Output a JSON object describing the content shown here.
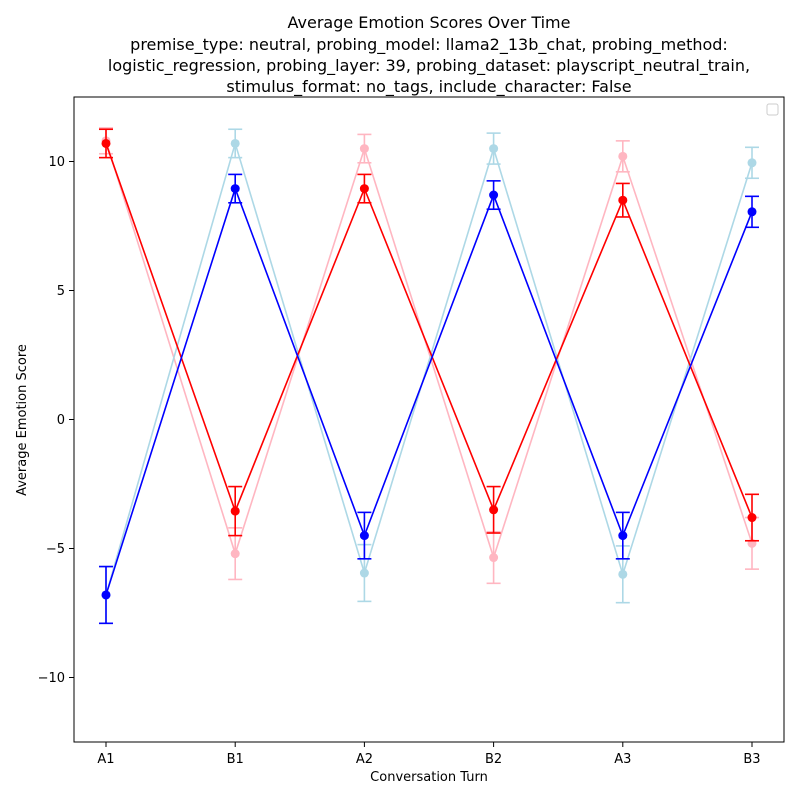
{
  "chart_data": {
    "type": "line",
    "title_lines": [
      "Average Emotion Scores Over Time",
      "premise_type: neutral, probing_model: llama2_13b_chat, probing_method:",
      "logistic_regression, probing_layer: 39, probing_dataset: playscript_neutral_train,",
      "stimulus_format: no_tags, include_character: False"
    ],
    "xlabel": "Conversation Turn",
    "ylabel": "Average Emotion Score",
    "categories": [
      "A1",
      "B1",
      "A2",
      "B2",
      "A3",
      "B3"
    ],
    "ylim": [
      -12.5,
      12.5
    ],
    "yticks": [
      -10,
      -5,
      0,
      5,
      10
    ],
    "ytick_labels": [
      "−10",
      "−5",
      "0",
      "5",
      "10"
    ],
    "legend": "top-right (empty)",
    "grid": false,
    "series": [
      {
        "color": "#ffb6c1",
        "values": [
          10.8,
          -5.2,
          10.5,
          -5.35,
          10.2,
          -4.8
        ],
        "errors": [
          0.5,
          1.0,
          0.55,
          1.0,
          0.6,
          1.0
        ]
      },
      {
        "color": "#add8e6",
        "values": [
          -6.8,
          10.7,
          -5.95,
          10.5,
          -6.0,
          9.95
        ],
        "errors": [
          1.1,
          0.55,
          1.1,
          0.6,
          1.1,
          0.6
        ]
      },
      {
        "color": "#ff0000",
        "values": [
          10.7,
          -3.55,
          8.95,
          -3.5,
          8.5,
          -3.8
        ],
        "errors": [
          0.55,
          0.95,
          0.55,
          0.9,
          0.65,
          0.9
        ]
      },
      {
        "color": "#0000ff",
        "values": [
          -6.8,
          8.95,
          -4.5,
          8.7,
          -4.5,
          8.05
        ],
        "errors": [
          1.1,
          0.55,
          0.9,
          0.55,
          0.9,
          0.6
        ]
      }
    ]
  }
}
